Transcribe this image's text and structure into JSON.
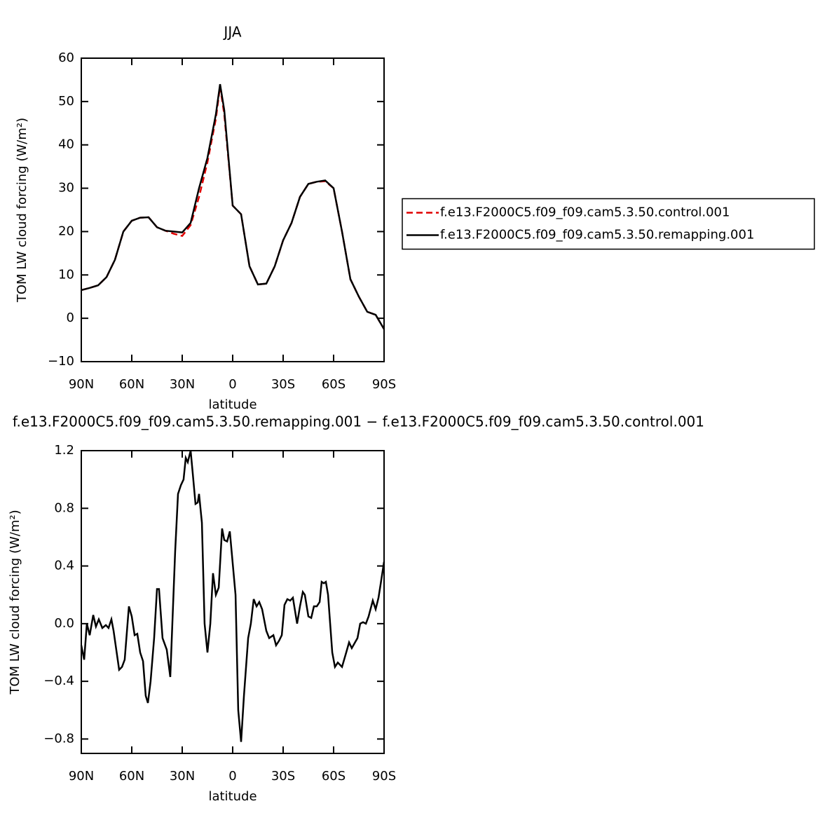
{
  "chart_data": [
    {
      "type": "line",
      "title": "JJA",
      "xlabel": "latitude",
      "ylabel": "TOM LW cloud forcing (W/m²)",
      "x": [
        90,
        85,
        80,
        75,
        70,
        65,
        60,
        55,
        50,
        45,
        40,
        35,
        30,
        25,
        20,
        15,
        10,
        7.5,
        5,
        0,
        -5,
        -10,
        -15,
        -20,
        -25,
        -30,
        -35,
        -40,
        -45,
        -50,
        -55,
        -60,
        -65,
        -70,
        -75,
        -80,
        -85,
        -90
      ],
      "series": [
        {
          "name": "f.e13.F2000C5.f09_f09.cam5.3.50.control.001",
          "color": "#e00000",
          "dashed": true,
          "values": [
            6.5,
            7,
            7.6,
            9.5,
            13.5,
            20,
            22.5,
            23.2,
            23.3,
            21,
            20.2,
            19.5,
            19,
            21.5,
            28,
            36,
            46,
            53.5,
            47,
            26,
            24,
            12,
            7.8,
            8,
            12,
            18,
            22,
            28,
            31,
            31.5,
            31.6,
            30,
            20,
            9,
            5,
            1.5,
            0.8,
            -2.5
          ]
        },
        {
          "name": "f.e13.F2000C5.f09_f09.cam5.3.50.remapping.001",
          "color": "#000000",
          "dashed": false,
          "values": [
            6.5,
            7,
            7.6,
            9.5,
            13.5,
            20,
            22.5,
            23.2,
            23.3,
            21,
            20.2,
            20,
            19.8,
            22,
            30,
            37,
            47,
            54,
            48,
            26,
            24,
            12,
            7.8,
            8,
            12,
            18,
            22,
            28,
            31,
            31.5,
            31.8,
            30,
            20,
            9,
            5,
            1.5,
            0.8,
            -2.5
          ]
        }
      ],
      "xlim": [
        90,
        -90
      ],
      "xticks": [
        {
          "value": 90,
          "label": "90N"
        },
        {
          "value": 60,
          "label": "60N"
        },
        {
          "value": 30,
          "label": "30N"
        },
        0,
        {
          "value": -30,
          "label": "30S"
        },
        {
          "value": -60,
          "label": "60S"
        },
        {
          "value": -90,
          "label": "90S"
        }
      ],
      "ylim": [
        -10,
        60
      ],
      "yticks": [
        {
          "value": -10,
          "label": "−10"
        },
        0,
        10,
        20,
        30,
        40,
        50,
        60
      ],
      "legend": "right"
    },
    {
      "type": "line",
      "title": "f.e13.F2000C5.f09_f09.cam5.3.50.remapping.001 − f.e13.F2000C5.f09_f09.cam5.3.50.control.001",
      "xlabel": "latitude",
      "ylabel": "TOM LW cloud forcing (W/m²)",
      "x": [
        90,
        88.3,
        86.7,
        85,
        82.9,
        81.3,
        79.6,
        77.5,
        75.4,
        73.8,
        72.1,
        70.8,
        67.5,
        65.8,
        64.2,
        61.7,
        60,
        58.3,
        56.7,
        55,
        53.3,
        51.7,
        50.4,
        48.8,
        46.7,
        45,
        43.8,
        41.7,
        39.2,
        37.1,
        34.2,
        32.5,
        30.8,
        29.2,
        27.9,
        26.7,
        25,
        23.8,
        22.1,
        20.8,
        20,
        18.3,
        16.7,
        15,
        13.3,
        11.7,
        10,
        8.3,
        6.3,
        5,
        3.3,
        1.7,
        -1.7,
        -3.3,
        -5,
        -6.7,
        -9.2,
        -10.8,
        -12.5,
        -14.2,
        -15.8,
        -17.5,
        -20,
        -21.7,
        -24.2,
        -25.8,
        -27.5,
        -29.2,
        -30.8,
        -32.5,
        -34.2,
        -35.8,
        -38.3,
        -40,
        -41.7,
        -42.9,
        -45,
        -46.7,
        -48.3,
        -50,
        -51.7,
        -52.9,
        -54.2,
        -55.4,
        -56.7,
        -59.2,
        -60.8,
        -62.5,
        -65,
        -67.5,
        -69.2,
        -70.8,
        -74.2,
        -75.8,
        -77.5,
        -79.2,
        -80.8,
        -83.3,
        -85,
        -86.7,
        -88.3,
        -90
      ],
      "series": [
        {
          "name": null,
          "color": "#000000",
          "dashed": false,
          "values": [
            -0.15,
            -0.25,
            0,
            -0.08,
            0.06,
            -0.02,
            0.03,
            -0.03,
            -0.01,
            -0.03,
            0.03,
            -0.05,
            -0.32,
            -0.3,
            -0.25,
            0.12,
            0.05,
            -0.08,
            -0.07,
            -0.2,
            -0.26,
            -0.5,
            -0.55,
            -0.4,
            -0.1,
            0.24,
            0.24,
            -0.1,
            -0.18,
            -0.37,
            0.5,
            0.9,
            0.96,
            1.0,
            1.15,
            1.12,
            1.2,
            1.05,
            0.83,
            0.84,
            0.9,
            0.7,
            0,
            -0.2,
            0,
            0.35,
            0.2,
            0.25,
            0.66,
            0.58,
            0.57,
            0.64,
            0.2,
            -0.6,
            -0.82,
            -0.5,
            -0.1,
            0,
            0.17,
            0.12,
            0.15,
            0.1,
            -0.05,
            -0.1,
            -0.08,
            -0.15,
            -0.12,
            -0.08,
            0.13,
            0.17,
            0.16,
            0.18,
            0,
            0.12,
            0.22,
            0.2,
            0.05,
            0.04,
            0.12,
            0.12,
            0.15,
            0.29,
            0.28,
            0.29,
            0.2,
            -0.2,
            -0.3,
            -0.27,
            -0.3,
            -0.2,
            -0.13,
            -0.17,
            -0.1,
            0,
            0.01,
            0,
            0.05,
            0.16,
            0.1,
            0.18,
            0.3,
            0.43
          ]
        }
      ],
      "xlim": [
        90,
        -90
      ],
      "xticks": [
        {
          "value": 90,
          "label": "90N"
        },
        {
          "value": 60,
          "label": "60N"
        },
        {
          "value": 30,
          "label": "30N"
        },
        0,
        {
          "value": -30,
          "label": "30S"
        },
        {
          "value": -60,
          "label": "60S"
        },
        {
          "value": -90,
          "label": "90S"
        }
      ],
      "ylim": [
        -0.9,
        1.2
      ],
      "yticks": [
        {
          "value": -0.8,
          "label": "−0.8"
        },
        {
          "value": -0.4,
          "label": "−0.4"
        },
        {
          "value": 0,
          "label": "0.0"
        },
        0.4,
        0.8,
        1.2
      ]
    }
  ]
}
